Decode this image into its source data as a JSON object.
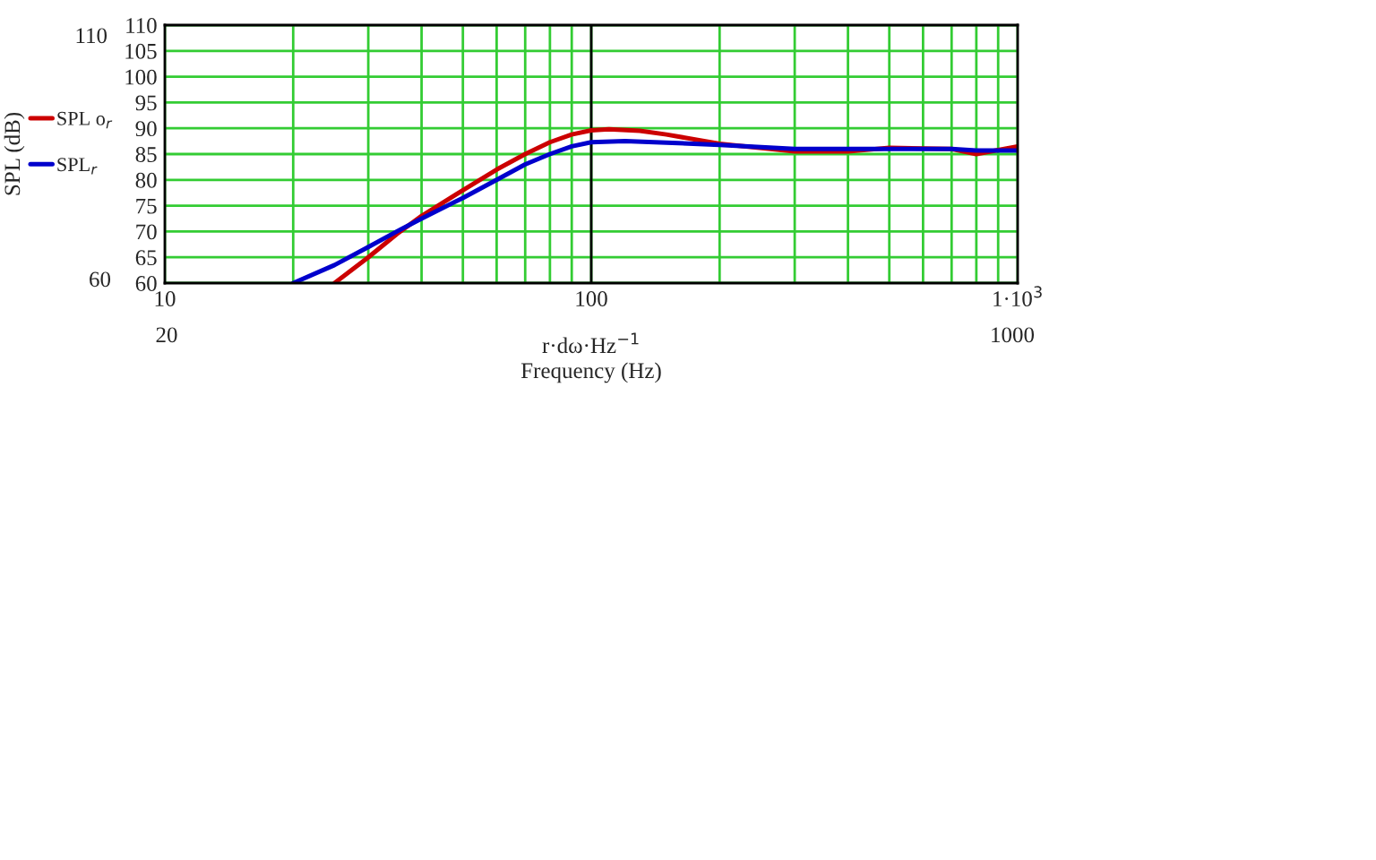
{
  "chart_data": {
    "type": "line",
    "xlabel": "r·dω·Hz$^{−1}$\nFrequency (Hz)",
    "ylabel": "SPL (dB)",
    "log": "x",
    "xlim": [
      10,
      1000
    ],
    "ylim": [
      60,
      110
    ],
    "xticks": [
      10,
      {
        "value": 20,
        "label": null
      },
      {
        "value": 30,
        "label": null
      },
      {
        "value": 40,
        "label": null
      },
      {
        "value": 50,
        "label": null
      },
      {
        "value": 60,
        "label": null
      },
      {
        "value": 70,
        "label": null
      },
      {
        "value": 80,
        "label": null
      },
      {
        "value": 90,
        "label": null
      },
      100,
      {
        "value": 200,
        "label": null
      },
      {
        "value": 300,
        "label": null
      },
      {
        "value": 400,
        "label": null
      },
      {
        "value": 500,
        "label": null
      },
      {
        "value": 600,
        "label": null
      },
      {
        "value": 700,
        "label": null
      },
      {
        "value": 800,
        "label": null
      },
      {
        "value": 900,
        "label": null
      },
      {
        "value": 1000,
        "label": "1·10$^{3}$"
      }
    ],
    "yticks": [
      60,
      65,
      70,
      75,
      80,
      85,
      90,
      95,
      100,
      105,
      110
    ],
    "grid": true,
    "legend": "left",
    "ref_lines": [
      {
        "axis": "x",
        "value": 100,
        "label": null,
        "color": "#000000"
      }
    ],
    "annotations": [
      "110",
      "60",
      "20",
      "1000"
    ],
    "series": [
      {
        "name": "SPL o$_{r}$",
        "color": "#cc0000",
        "line_style": "solid",
        "x": [
          25,
          30,
          35,
          40,
          50,
          60,
          70,
          80,
          90,
          100,
          110,
          130,
          150,
          200,
          300,
          400,
          500,
          700,
          800,
          1000
        ],
        "values": [
          60,
          65,
          69.5,
          73,
          78,
          82,
          85,
          87.3,
          88.8,
          89.6,
          89.8,
          89.5,
          88.8,
          87,
          85.5,
          85.5,
          86.2,
          86,
          85,
          86.5
        ]
      },
      {
        "name": "SPL$_{r}$",
        "color": "#0000cc",
        "line_style": "solid",
        "x": [
          20,
          25,
          30,
          35,
          40,
          50,
          60,
          70,
          80,
          90,
          100,
          120,
          150,
          200,
          300,
          400,
          500,
          700,
          800,
          1000
        ],
        "values": [
          60,
          63.5,
          67,
          70,
          72.5,
          76.5,
          80,
          83,
          85,
          86.5,
          87.3,
          87.5,
          87.2,
          86.8,
          86,
          86,
          86,
          86,
          85.7,
          85.7
        ]
      }
    ]
  }
}
